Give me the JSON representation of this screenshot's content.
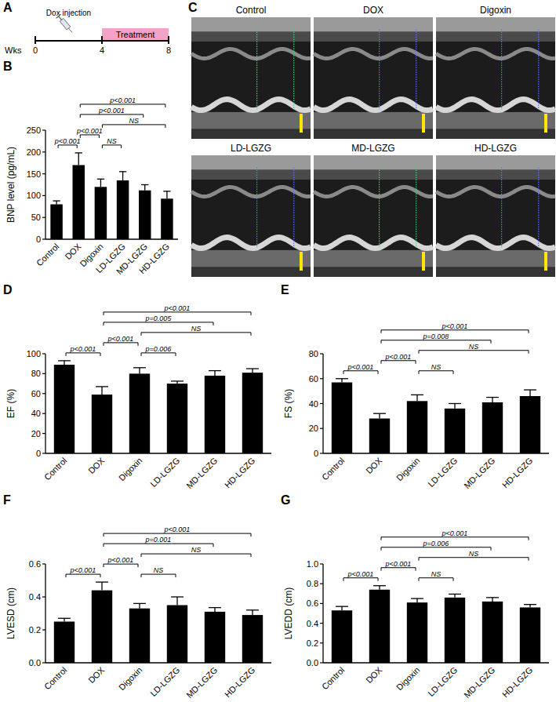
{
  "panel_a": {
    "panel_label": "A",
    "event_label": "Dox injection",
    "bar_label": "Treatment",
    "axis_label": "Wks",
    "range": [
      0,
      8
    ],
    "ticks": [
      0,
      4,
      8
    ],
    "treatment": [
      4,
      8
    ]
  },
  "panel_c": {
    "panel_label": "C",
    "images": [
      "Control",
      "DOX",
      "Digoxin",
      "LD-LGZG",
      "MD-LGZG",
      "HD-LGZG"
    ]
  },
  "chart_data": [
    {
      "panel_label": "B",
      "type": "bar",
      "y_label": "BNP level (pg/mL)",
      "categories": [
        "Control",
        "DOX",
        "Digoxin",
        "LD-LGZG",
        "MD-LGZG",
        "HD-LGZG"
      ],
      "values": [
        80,
        170,
        120,
        135,
        112,
        93
      ],
      "errors": [
        8,
        28,
        18,
        20,
        13,
        17
      ],
      "color": "#000000",
      "ylim": [
        0,
        250
      ],
      "yticks": [
        0,
        50,
        100,
        150,
        200,
        250
      ],
      "comparisons": [
        {
          "from": "Control",
          "to": "DOX",
          "label": "p<0.001"
        },
        {
          "from": "DOX",
          "to": "Digoxin",
          "label": "p<0.001"
        },
        {
          "from": "Digoxin",
          "to": "LD-LGZG",
          "label": "NS"
        },
        {
          "from": "Digoxin",
          "to": "HD-LGZG",
          "label": "NS"
        },
        {
          "from": "DOX",
          "to": "MD-LGZG",
          "label": "p<0.001"
        },
        {
          "from": "DOX",
          "to": "HD-LGZG",
          "label": "p<0.001"
        }
      ]
    },
    {
      "panel_label": "D",
      "type": "bar",
      "y_label": "EF (%)",
      "categories": [
        "Control",
        "DOX",
        "Digoxin",
        "LD-LGZG",
        "MD-LGZG",
        "HD-LGZG"
      ],
      "values": [
        89,
        59,
        80,
        70,
        78,
        81
      ],
      "errors": [
        4,
        8,
        6,
        2.5,
        5,
        4
      ],
      "color": "#000000",
      "ylim": [
        0,
        100
      ],
      "yticks": [
        0,
        20,
        40,
        60,
        80,
        100
      ],
      "comparisons": [
        {
          "from": "Control",
          "to": "DOX",
          "label": "p<0.001"
        },
        {
          "from": "DOX",
          "to": "Digoxin",
          "label": "p<0.001"
        },
        {
          "from": "Digoxin",
          "to": "LD-LGZG",
          "label": "p=0.006"
        },
        {
          "from": "Digoxin",
          "to": "HD-LGZG",
          "label": "NS"
        },
        {
          "from": "DOX",
          "to": "MD-LGZG",
          "label": "p=0.005"
        },
        {
          "from": "DOX",
          "to": "HD-LGZG",
          "label": "p<0.001"
        }
      ]
    },
    {
      "panel_label": "E",
      "type": "bar",
      "y_label": "FS (%)",
      "categories": [
        "Control",
        "DOX",
        "Digoxin",
        "LD-LGZG",
        "MD-LGZG",
        "HD-LGZG"
      ],
      "values": [
        57,
        28,
        42,
        36,
        41,
        46
      ],
      "errors": [
        3,
        4,
        5,
        4,
        4,
        5
      ],
      "color": "#000000",
      "ylim": [
        0,
        80
      ],
      "yticks": [
        0,
        20,
        40,
        60,
        80
      ],
      "comparisons": [
        {
          "from": "Control",
          "to": "DOX",
          "label": "p<0.001"
        },
        {
          "from": "DOX",
          "to": "Digoxin",
          "label": "p<0.001"
        },
        {
          "from": "Digoxin",
          "to": "LD-LGZG",
          "label": "NS"
        },
        {
          "from": "Digoxin",
          "to": "HD-LGZG",
          "label": "NS"
        },
        {
          "from": "DOX",
          "to": "MD-LGZG",
          "label": "p=0.008"
        },
        {
          "from": "DOX",
          "to": "HD-LGZG",
          "label": "p<0.001"
        }
      ]
    },
    {
      "panel_label": "F",
      "type": "bar",
      "y_label": "LVESD (cm)",
      "categories": [
        "Control",
        "DOX",
        "Digoxin",
        "LD-LGZG",
        "MD-LGZG",
        "HD-LGZG"
      ],
      "values": [
        0.25,
        0.44,
        0.33,
        0.35,
        0.31,
        0.29
      ],
      "errors": [
        0.02,
        0.05,
        0.03,
        0.05,
        0.025,
        0.03
      ],
      "color": "#000000",
      "ylim": [
        0,
        0.6
      ],
      "yticks": [
        {
          "value": 0,
          "label": "0.0"
        },
        0.2,
        0.4,
        0.6
      ],
      "comparisons": [
        {
          "from": "Control",
          "to": "DOX",
          "label": "p<0.001"
        },
        {
          "from": "DOX",
          "to": "Digoxin",
          "label": "p<0.001"
        },
        {
          "from": "Digoxin",
          "to": "LD-LGZG",
          "label": "NS"
        },
        {
          "from": "Digoxin",
          "to": "HD-LGZG",
          "label": "NS"
        },
        {
          "from": "DOX",
          "to": "MD-LGZG",
          "label": "p=0.001"
        },
        {
          "from": "DOX",
          "to": "HD-LGZG",
          "label": "p<0.001"
        }
      ]
    },
    {
      "panel_label": "G",
      "type": "bar",
      "y_label": "LVEDD (cm)",
      "categories": [
        "Control",
        "DOX",
        "Digoxin",
        "LD-LGZG",
        "MD-LGZG",
        "HD-LGZG"
      ],
      "values": [
        0.53,
        0.74,
        0.61,
        0.66,
        0.62,
        0.56
      ],
      "errors": [
        0.04,
        0.04,
        0.04,
        0.035,
        0.04,
        0.03
      ],
      "color": "#000000",
      "ylim": [
        0,
        1.0
      ],
      "yticks": [
        {
          "value": 0,
          "label": "0.0"
        },
        0.2,
        0.4,
        0.6,
        0.8,
        {
          "value": 1,
          "label": "1.0"
        }
      ],
      "comparisons": [
        {
          "from": "Control",
          "to": "DOX",
          "label": "p<0.001"
        },
        {
          "from": "DOX",
          "to": "Digoxin",
          "label": "p<0.001"
        },
        {
          "from": "Digoxin",
          "to": "LD-LGZG",
          "label": "NS"
        },
        {
          "from": "Digoxin",
          "to": "HD-LGZG",
          "label": "NS"
        },
        {
          "from": "DOX",
          "to": "MD-LGZG",
          "label": "p=0.006"
        },
        {
          "from": "DOX",
          "to": "HD-LGZG",
          "label": "p<0.001"
        }
      ]
    }
  ]
}
